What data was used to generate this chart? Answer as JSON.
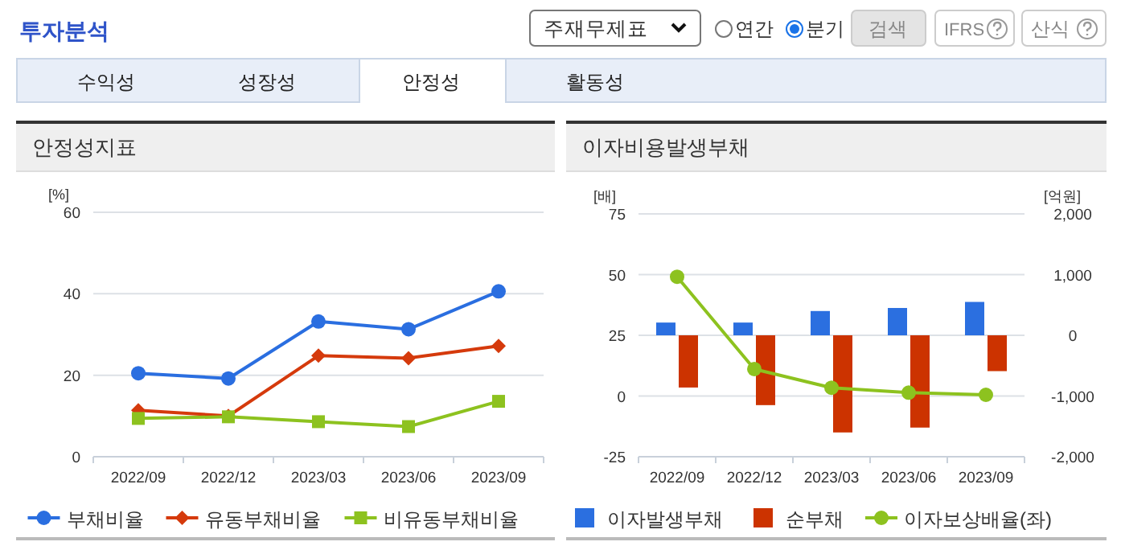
{
  "chart_data": [
    {
      "type": "line",
      "title": "안정성지표",
      "ylabel": "[%]",
      "categories": [
        "2022/09",
        "2022/12",
        "2023/03",
        "2023/06",
        "2023/09"
      ],
      "ylim": [
        0,
        60
      ],
      "yticks": [
        0,
        20,
        40,
        60
      ],
      "grid": "y",
      "legend": "bottom",
      "annotations": [
        "투자분석",
        "주재무제표",
        "연간",
        "분기",
        "검색",
        "IFRS",
        "산식",
        "수익성",
        "성장성",
        "안정성",
        "활동성"
      ],
      "series": [
        {
          "name": "부채비율",
          "color": "#2a6ee0",
          "marker": "circle",
          "values": [
            20.5,
            19.2,
            33.2,
            31.3,
            40.6
          ]
        },
        {
          "name": "유동부채비율",
          "color": "#d53a0c",
          "marker": "diamond",
          "values": [
            11.4,
            10.0,
            24.8,
            24.2,
            27.2
          ]
        },
        {
          "name": "비유동부채비율",
          "color": "#8dc21f",
          "marker": "square",
          "values": [
            9.4,
            9.8,
            8.6,
            7.4,
            13.6
          ]
        }
      ]
    },
    {
      "type": "bar",
      "title": "이자비용발생부채",
      "ylabel": "[배]",
      "y2label": "[억원]",
      "categories": [
        "2022/09",
        "2022/12",
        "2023/03",
        "2023/06",
        "2023/09"
      ],
      "ylim": [
        -25,
        75
      ],
      "yticks": [
        -25,
        0,
        25,
        50,
        75
      ],
      "y2lim": [
        -2000,
        2000
      ],
      "y2ticks": [
        {
          "value": -2000,
          "label": "-2,000"
        },
        {
          "value": -1000,
          "label": "-1,000"
        },
        0,
        {
          "value": 1000,
          "label": "1,000"
        },
        {
          "value": 2000,
          "label": "2,000"
        }
      ],
      "grid": "y",
      "legend": "bottom",
      "series": [
        {
          "name": "이자발생부채",
          "axis": "y2",
          "color": "#2b6fe0",
          "values": [
            210,
            210,
            400,
            450,
            550
          ]
        },
        {
          "name": "순부채",
          "axis": "y2",
          "color": "#cc3300",
          "values": [
            -860,
            -1150,
            -1600,
            -1520,
            -590
          ]
        },
        {
          "name": "이자보상배율(좌)",
          "type": "line",
          "color": "#8dc21f",
          "marker": "circle",
          "values": [
            49.1,
            11.1,
            3.4,
            1.4,
            0.5
          ]
        }
      ]
    }
  ]
}
